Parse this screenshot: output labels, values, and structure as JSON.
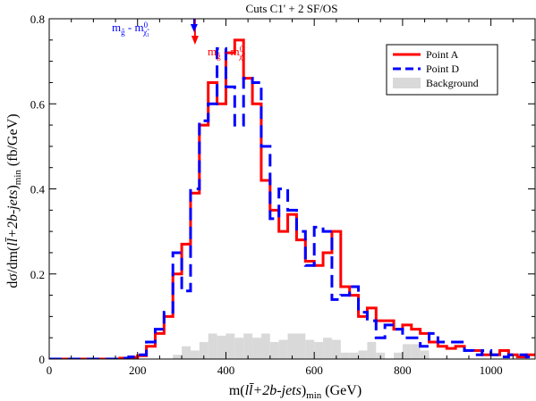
{
  "chart_data": {
    "type": "line",
    "step": true,
    "title": "Cuts C1' + 2 SF/OS",
    "xlabel": "m(ll̄+2b-jets)min (GeV)",
    "ylabel": "dσ/dm(ll̄+2b-jets)min (fb/GeV)",
    "xlim": [
      0,
      1100
    ],
    "ylim": [
      0,
      0.8
    ],
    "xticks": [
      0,
      200,
      400,
      600,
      800,
      1000
    ],
    "yticks": [
      0,
      0.2,
      0.4,
      0.6,
      0.8
    ],
    "legend_position": "top-right",
    "bin_width": 20,
    "series": [
      {
        "name": "Point A",
        "style": "solid",
        "color": "#ff0000",
        "values": [
          0,
          0,
          0,
          0,
          0,
          0,
          0,
          0,
          0.002,
          0.004,
          0.008,
          0.03,
          0.06,
          0.1,
          0.2,
          0.27,
          0.39,
          0.55,
          0.65,
          0.6,
          0.72,
          0.75,
          0.66,
          0.6,
          0.42,
          0.35,
          0.3,
          0.34,
          0.28,
          0.23,
          0.22,
          0.25,
          0.3,
          0.17,
          0.15,
          0.1,
          0.12,
          0.09,
          0.09,
          0.07,
          0.08,
          0.07,
          0.06,
          0.04,
          0.03,
          0.025,
          0.03,
          0.02,
          0.02,
          0.01,
          0.01,
          0.02,
          0.01,
          0.005,
          0.01,
          0.01
        ]
      },
      {
        "name": "Point D",
        "style": "dashed",
        "color": "#0000ff",
        "values": [
          0,
          0,
          0,
          0,
          0,
          0,
          0,
          0,
          0.002,
          0.005,
          0.01,
          0.04,
          0.07,
          0.11,
          0.25,
          0.16,
          0.4,
          0.56,
          0.6,
          0.73,
          0.64,
          0.55,
          0.66,
          0.65,
          0.5,
          0.33,
          0.4,
          0.35,
          0.3,
          0.22,
          0.31,
          0.3,
          0.14,
          0.15,
          0.17,
          0.11,
          0.09,
          0.05,
          0.08,
          0.07,
          0.05,
          0.05,
          0.03,
          0.06,
          0.04,
          0.04,
          0.04,
          0.02,
          0.01,
          0.02,
          0.01,
          0.005,
          0.01,
          0.01,
          0.005,
          0.005
        ]
      },
      {
        "name": "Background",
        "style": "filled",
        "color": "#d9d9d9",
        "values": [
          0,
          0,
          0,
          0,
          0,
          0,
          0,
          0,
          0,
          0,
          0,
          0,
          0,
          0,
          0.01,
          0.03,
          0.02,
          0.04,
          0.06,
          0.055,
          0.06,
          0.05,
          0.06,
          0.05,
          0.06,
          0.04,
          0.045,
          0.06,
          0.06,
          0.045,
          0.04,
          0.05,
          0.045,
          0.015,
          0.015,
          0.02,
          0.04,
          0.015,
          0,
          0.015,
          0.035,
          0.035,
          0.02,
          0,
          0,
          0,
          0,
          0,
          0,
          0,
          0,
          0,
          0,
          0,
          0,
          0
        ]
      }
    ],
    "annotations": [
      {
        "text": "mg̃ - mχ̃0₁",
        "color": "#0000ff",
        "x": 330
      },
      {
        "text": "mg̃ - mχ̃0₁",
        "color": "#ff0000",
        "x": 330
      }
    ]
  }
}
